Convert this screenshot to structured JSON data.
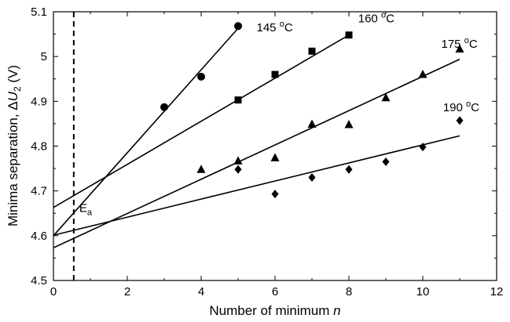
{
  "chart_data": {
    "type": "scatter",
    "xlabel": "Number of minimum n",
    "ylabel": "Minima separation, ΔU2 (V)",
    "xlim": [
      0,
      12
    ],
    "ylim": [
      4.5,
      5.1
    ],
    "xticks": [
      0,
      2,
      4,
      6,
      8,
      10,
      12
    ],
    "yticks": [
      4.5,
      4.6,
      4.7,
      4.8,
      4.9,
      5.0,
      5.1
    ],
    "ytick_labels": [
      "4.5",
      "4.6",
      "4.7",
      "4.8",
      "4.9",
      "5",
      "5.1"
    ],
    "grid": false,
    "series": [
      {
        "name": "145 °C",
        "marker": "circle",
        "x": [
          3,
          4,
          5
        ],
        "y": [
          4.887,
          4.955,
          5.068
        ],
        "fit": {
          "x": [
            0,
            5
          ],
          "y": [
            4.6,
            5.063
          ]
        }
      },
      {
        "name": "160 °C",
        "marker": "square",
        "x": [
          5,
          6,
          7,
          8
        ],
        "y": [
          4.903,
          4.96,
          5.012,
          5.048
        ],
        "fit": {
          "x": [
            0,
            8
          ],
          "y": [
            4.663,
            5.048
          ]
        }
      },
      {
        "name": "175 °C",
        "marker": "triangle",
        "x": [
          4,
          5,
          6,
          7,
          8,
          9,
          10,
          11
        ],
        "y": [
          4.748,
          4.767,
          4.774,
          4.849,
          4.848,
          4.908,
          4.96,
          5.017
        ],
        "fit": {
          "x": [
            0,
            11
          ],
          "y": [
            4.573,
            4.994
          ]
        }
      },
      {
        "name": "190 °C",
        "marker": "diamond",
        "x": [
          5,
          6,
          7,
          8,
          9,
          10,
          11
        ],
        "y": [
          4.748,
          4.693,
          4.73,
          4.748,
          4.765,
          4.798,
          4.857
        ],
        "fit": {
          "x": [
            0,
            11
          ],
          "y": [
            4.601,
            4.823
          ]
        }
      }
    ],
    "annotations": [
      {
        "text": "E",
        "subscript": "a",
        "x": 0.55,
        "style": "dashed vertical line"
      }
    ]
  }
}
